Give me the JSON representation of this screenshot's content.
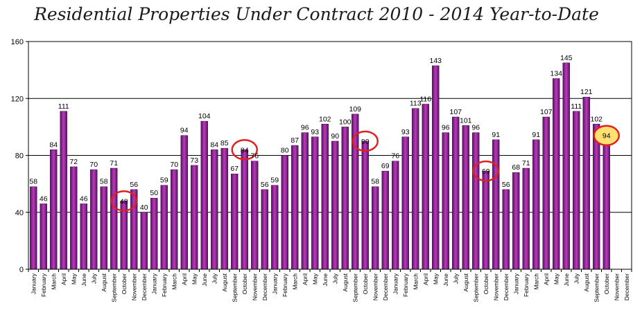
{
  "chart_data": {
    "type": "bar",
    "title": "Residential Properties Under Contract 2010 - 2014 Year-to-Date",
    "ylim": [
      0,
      160
    ],
    "yticks": [
      0,
      40,
      80,
      120,
      160
    ],
    "grid": "horizontal",
    "legend": "none",
    "categories": [
      "January",
      "February",
      "March",
      "April",
      "May",
      "June",
      "July",
      "August",
      "September",
      "October",
      "November",
      "December",
      "January",
      "February",
      "March",
      "April",
      "May",
      "June",
      "July",
      "August",
      "September",
      "October",
      "November",
      "December",
      "January",
      "February",
      "March",
      "April",
      "May",
      "June",
      "July",
      "August",
      "September",
      "October",
      "November",
      "December",
      "January",
      "February",
      "March",
      "April",
      "May",
      "June",
      "July",
      "August",
      "September",
      "October",
      "November",
      "December",
      "January",
      "February",
      "March",
      "April",
      "May",
      "June",
      "July",
      "August",
      "September",
      "October",
      "November",
      "December"
    ],
    "values": [
      58,
      46,
      84,
      111,
      72,
      46,
      70,
      58,
      71,
      48,
      56,
      40,
      50,
      59,
      70,
      94,
      73,
      104,
      84,
      85,
      67,
      84,
      76,
      56,
      59,
      80,
      87,
      96,
      93,
      102,
      90,
      100,
      109,
      90,
      58,
      69,
      76,
      93,
      113,
      116,
      143,
      96,
      107,
      101,
      96,
      69,
      91,
      56,
      68,
      71,
      91,
      107,
      134,
      145,
      111,
      121,
      102,
      94,
      null,
      null
    ],
    "highlights": [
      {
        "index": 9,
        "style": "red-circle"
      },
      {
        "index": 21,
        "style": "red-circle"
      },
      {
        "index": 33,
        "style": "red-circle"
      },
      {
        "index": 45,
        "style": "red-circle"
      },
      {
        "index": 57,
        "style": "yellow-filled-circle"
      }
    ],
    "colors": {
      "bar_fill": "#8e1e8e",
      "bar_light": "#b93cb5",
      "bar_dark": "#5a0f6a",
      "bar_stroke": "#3a0a40",
      "grid": "#000000",
      "highlight_ring": "#e02020",
      "highlight_fill": "#ffe070"
    }
  }
}
